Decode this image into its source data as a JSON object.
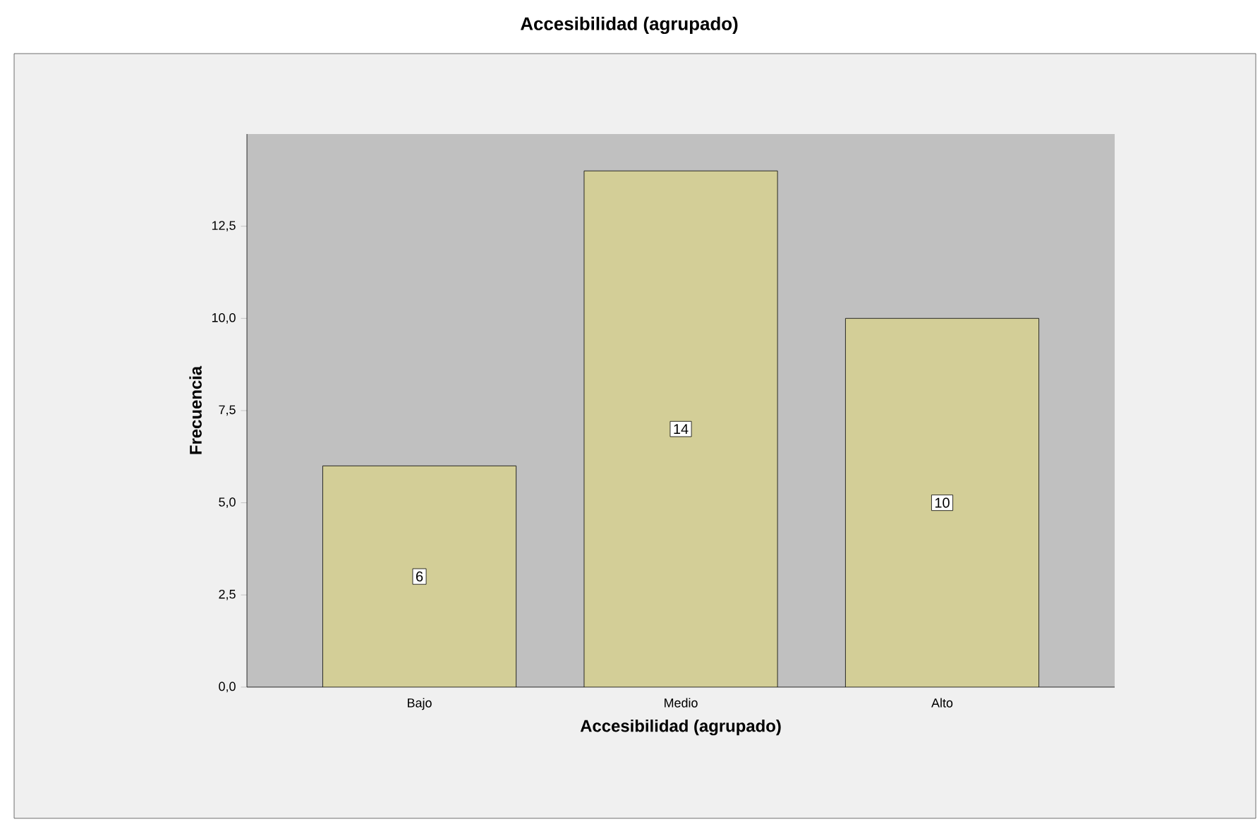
{
  "chart_data": {
    "type": "bar",
    "title": "Accesibilidad (agrupado)",
    "xlabel": "Accesibilidad (agrupado)",
    "ylabel": "Frecuencia",
    "categories": [
      "Bajo",
      "Medio",
      "Alto"
    ],
    "values": [
      6,
      14,
      10
    ],
    "color": "#d3ce97",
    "ylim": [
      0,
      15
    ],
    "yticks": [
      {
        "value": 0,
        "label": "0,0"
      },
      {
        "value": 2.5,
        "label": "2,5"
      },
      {
        "value": 5,
        "label": "5,0"
      },
      {
        "value": 7.5,
        "label": "7,5"
      },
      {
        "value": 10,
        "label": "10,0"
      },
      {
        "value": 12.5,
        "label": "12,5"
      }
    ],
    "data_labels": true
  }
}
